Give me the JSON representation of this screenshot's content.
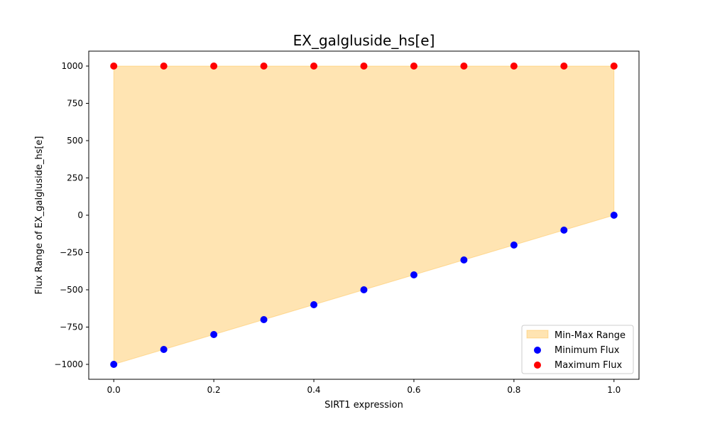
{
  "chart_data": {
    "type": "scatter",
    "title": "EX_galgluside_hs[e]",
    "xlabel": "SIRT1 expression",
    "ylabel": "Flux Range of EX_galgluside_hs[e]",
    "xlim": [
      -0.05,
      1.05
    ],
    "ylim": [
      -1100,
      1100
    ],
    "x_ticks": [
      0.0,
      0.2,
      0.4,
      0.6,
      0.8,
      1.0
    ],
    "x_tick_labels": [
      "0.0",
      "0.2",
      "0.4",
      "0.6",
      "0.8",
      "1.0"
    ],
    "y_ticks": [
      -1000,
      -750,
      -500,
      -250,
      0,
      250,
      500,
      750,
      1000
    ],
    "y_tick_labels": [
      "−1000",
      "−750",
      "−500",
      "−250",
      "0",
      "250",
      "500",
      "750",
      "1000"
    ],
    "grid": false,
    "legend_position": "lower right",
    "x": [
      0.0,
      0.1,
      0.2,
      0.3,
      0.4,
      0.5,
      0.6,
      0.7,
      0.8,
      0.9,
      1.0
    ],
    "series": [
      {
        "name": "Minimum Flux",
        "kind": "scatter",
        "color": "#0000ff",
        "values": [
          -1000,
          -900,
          -800,
          -700,
          -600,
          -500,
          -400,
          -300,
          -200,
          -100,
          0
        ]
      },
      {
        "name": "Maximum Flux",
        "kind": "scatter",
        "color": "#ff0000",
        "values": [
          1000,
          1000,
          1000,
          1000,
          1000,
          1000,
          1000,
          1000,
          1000,
          1000,
          1000
        ]
      }
    ],
    "fill": {
      "name": "Min-Max Range",
      "color": "#ffa500",
      "opacity": 0.3
    },
    "legend": [
      "Min-Max Range",
      "Minimum Flux",
      "Maximum Flux"
    ]
  }
}
